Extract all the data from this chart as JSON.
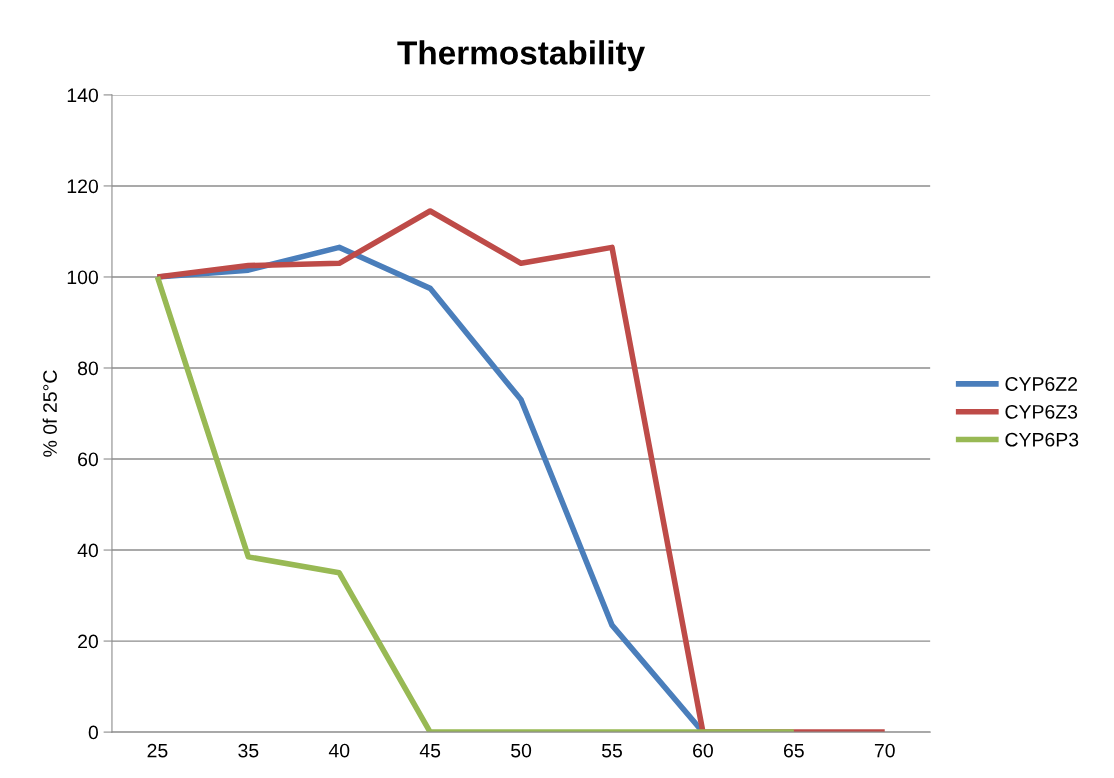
{
  "chart_data": {
    "type": "line",
    "title": "Thermostability",
    "ylabel": "% 0f 25°C",
    "categories": [
      "25",
      "35",
      "40",
      "45",
      "50",
      "55",
      "60",
      "65",
      "70"
    ],
    "series": [
      {
        "name": "CYP6Z2",
        "color": "#4a7ebb",
        "values": [
          100,
          101.5,
          106.5,
          97.5,
          73,
          23.5,
          0,
          null,
          null
        ]
      },
      {
        "name": "CYP6Z3",
        "color": "#be4b48",
        "values": [
          100,
          102.5,
          103,
          114.5,
          103,
          106.5,
          0,
          0,
          0
        ]
      },
      {
        "name": "CYP6P3",
        "color": "#98b954",
        "values": [
          100,
          38.5,
          35,
          0,
          0,
          0,
          0,
          0,
          null
        ]
      }
    ],
    "ylim": [
      0,
      140
    ],
    "yticks": [
      0,
      20,
      40,
      60,
      80,
      100,
      120,
      140
    ],
    "grid": "y",
    "legend": "right",
    "marker": "none",
    "line_style": "solid"
  }
}
